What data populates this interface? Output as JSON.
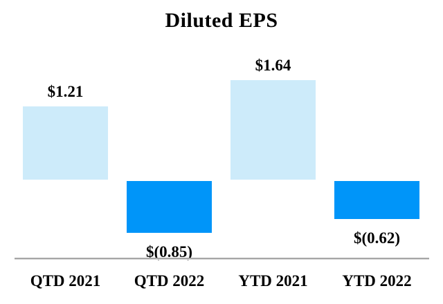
{
  "title": "Diluted EPS",
  "colors": {
    "positive_bar": "#CDEBFA",
    "negative_bar": "#0095F9",
    "axis_line": "#A6A6A6",
    "text": "#000000",
    "background": "#FFFFFF"
  },
  "chart_data": {
    "type": "bar",
    "title": "Diluted EPS",
    "categories": [
      "QTD 2021",
      "QTD 2022",
      "YTD 2021",
      "YTD 2022"
    ],
    "values": [
      1.21,
      -0.85,
      1.64,
      -0.62
    ],
    "data_labels": [
      "$1.21",
      "$(0.85)",
      "$1.64",
      "$(0.62)"
    ],
    "xlabel": "",
    "ylabel": "",
    "ylim": [
      -1.3,
      1.9
    ],
    "grid": false,
    "legend": false,
    "baseline": 0,
    "bar_colors": [
      "#CDEBFA",
      "#0095F9",
      "#CDEBFA",
      "#0095F9"
    ],
    "notes": "Positive bars pale blue above zero baseline; negative bars vivid azure below baseline; gray x-axis line drawn under category area, no y-axis shown"
  }
}
